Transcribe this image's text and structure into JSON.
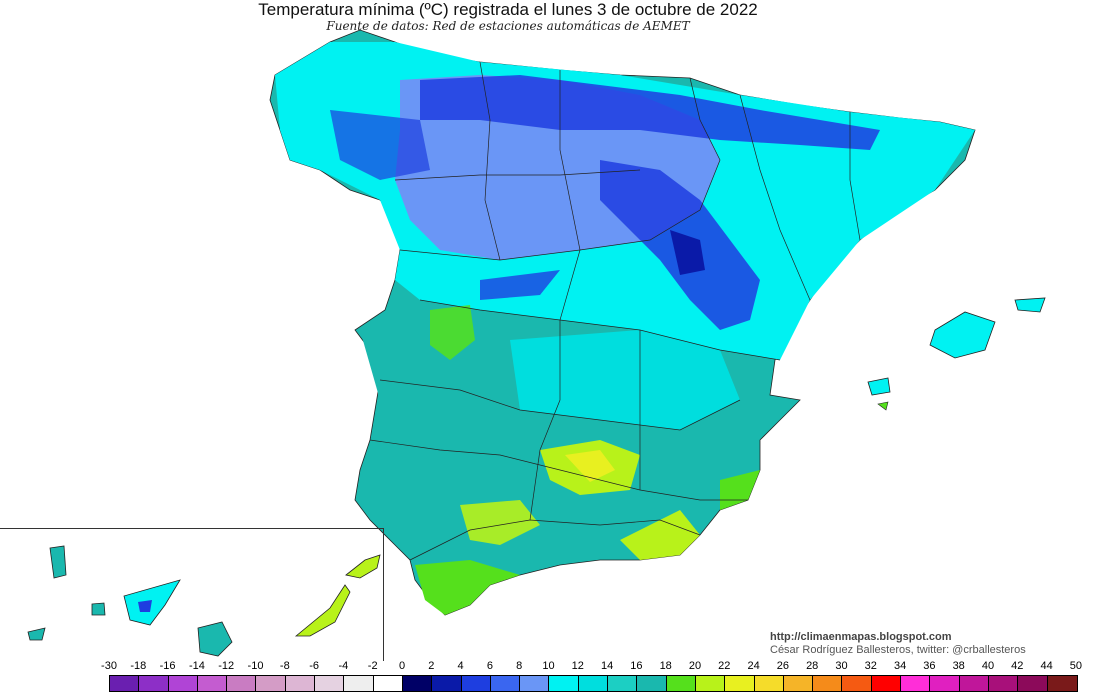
{
  "title": "Temperatura mínima (ºC) registrada el lunes 3 de octubre de 2022",
  "subtitle": "Fuente de datos: Red de estaciones automáticas de AEMET",
  "credits": {
    "blog": "http://climaenmapas.blogspot.com",
    "author": "César Rodríguez Ballesteros, twitter: @crballesteros"
  },
  "legend": {
    "ticks": [
      "-30",
      "-18",
      "-16",
      "-14",
      "-12",
      "-10",
      "-8",
      "-6",
      "-4",
      "-2",
      "0",
      "2",
      "4",
      "6",
      "8",
      "10",
      "12",
      "14",
      "16",
      "18",
      "20",
      "22",
      "24",
      "26",
      "28",
      "30",
      "32",
      "34",
      "36",
      "38",
      "40",
      "42",
      "44",
      "50"
    ],
    "colors": [
      "#6a1fb0",
      "#8d2fc7",
      "#b044d6",
      "#c45cd0",
      "#c97cc2",
      "#d49cc6",
      "#ddb6d4",
      "#e5d2e1",
      "#eeeeee",
      "#ffffff",
      "#000066",
      "#0a1aa8",
      "#1e3ee0",
      "#3a66f0",
      "#6a96f6",
      "#00f2f2",
      "#00dede",
      "#1ccfc3",
      "#1ab8ae",
      "#55e01c",
      "#b8f21a",
      "#e8f020",
      "#f5dc2a",
      "#f5b428",
      "#f58b1a",
      "#f55a12",
      "#ff0000",
      "#ff2ed8",
      "#e020c0",
      "#c0169a",
      "#a8107a",
      "#8c0a5a",
      "#7a1a1a"
    ]
  },
  "map": {
    "regions": [
      {
        "name": "galicia-cold-zone",
        "color": "#1e3ee0"
      },
      {
        "name": "castilla-leon",
        "color": "#6a96f6"
      },
      {
        "name": "iberian-system",
        "color": "#1e3ee0"
      },
      {
        "name": "interior-cyan",
        "color": "#00f2f2"
      },
      {
        "name": "south-teal",
        "color": "#1ccfc3"
      },
      {
        "name": "guadalquivir-warm",
        "color": "#b8f21a"
      },
      {
        "name": "coast-green",
        "color": "#55e01c"
      }
    ]
  }
}
